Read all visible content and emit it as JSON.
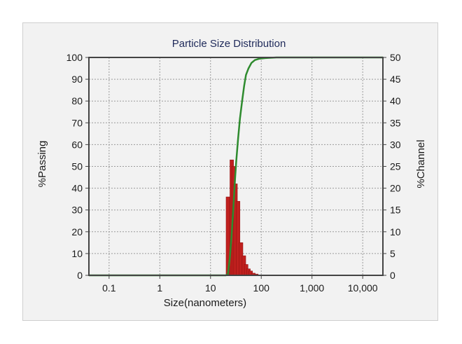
{
  "chart_data": {
    "type": "bar+line",
    "title": "Particle Size Distribution",
    "xlabel": "Size(nanometers)",
    "ylabel_left": "%Passing",
    "ylabel_right": "%Channel",
    "xscale": "log",
    "xlim": [
      0.04,
      25000
    ],
    "ylim_left": [
      0,
      100
    ],
    "ylim_right": [
      0,
      50
    ],
    "grid": true,
    "x_tick_labels": [
      "0.1",
      "1",
      "10",
      "100",
      "1,000",
      "10,000"
    ],
    "x_tick_values": [
      0.1,
      1,
      10,
      100,
      1000,
      10000
    ],
    "y_left_ticks": [
      "0",
      "10",
      "20",
      "30",
      "40",
      "50",
      "60",
      "70",
      "80",
      "90",
      "100"
    ],
    "y_right_ticks": [
      "0",
      "5",
      "10",
      "15",
      "20",
      "25",
      "30",
      "35",
      "40",
      "45",
      "50"
    ],
    "colors": {
      "passing": "#2e8b2e",
      "channel": "#c0201e",
      "title": "#1f2a5a",
      "grid": "#9a9a9a"
    },
    "series": [
      {
        "name": "%Passing",
        "axis": "left",
        "type": "line",
        "points": [
          [
            0.04,
            0
          ],
          [
            20,
            0
          ],
          [
            22,
            0.5
          ],
          [
            24,
            8
          ],
          [
            26,
            18
          ],
          [
            28,
            30
          ],
          [
            30,
            42
          ],
          [
            32,
            52
          ],
          [
            35,
            63
          ],
          [
            38,
            72
          ],
          [
            42,
            80
          ],
          [
            46,
            87
          ],
          [
            50,
            92
          ],
          [
            56,
            95
          ],
          [
            64,
            97.5
          ],
          [
            75,
            98.8
          ],
          [
            90,
            99.4
          ],
          [
            120,
            99.7
          ],
          [
            200,
            100
          ],
          [
            25000,
            100
          ]
        ]
      },
      {
        "name": "%Channel",
        "axis": "right",
        "type": "bar",
        "points": [
          [
            22.0,
            18
          ],
          [
            26.2,
            26.5
          ],
          [
            28.5,
            25
          ],
          [
            31.1,
            21
          ],
          [
            35.0,
            17
          ],
          [
            40.0,
            7.5
          ],
          [
            45.5,
            4.5
          ],
          [
            50.5,
            2.5
          ],
          [
            56.0,
            1.5
          ],
          [
            62.0,
            1.0
          ],
          [
            70.0,
            0.5
          ],
          [
            80.0,
            0.3
          ]
        ]
      }
    ]
  }
}
